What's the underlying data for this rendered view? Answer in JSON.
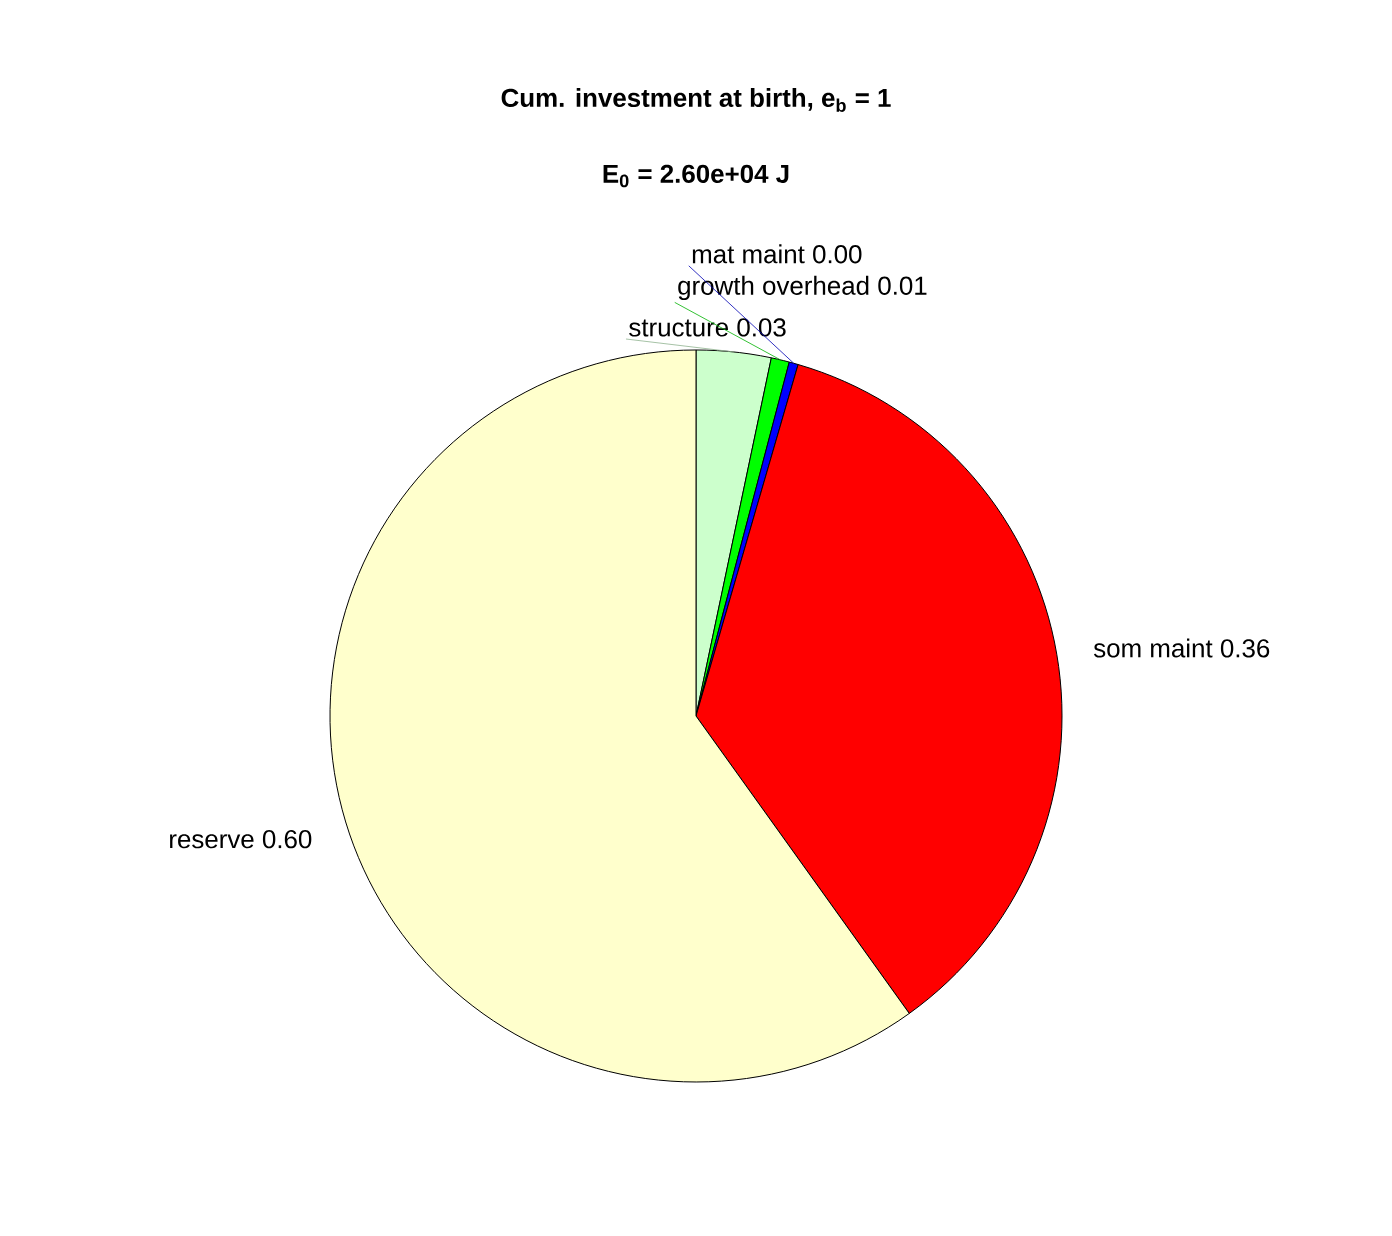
{
  "chart_data": {
    "type": "pie",
    "title": "Cum. investment at birth, e$_{b}$ = 1",
    "subtitle": "E$_{0}$ = 2.60e+04 J",
    "categories": [
      "structure",
      "growth overhead",
      "mat maint",
      "som maint",
      "reserve"
    ],
    "values": [
      0.033,
      0.008,
      0.004,
      0.356,
      0.599
    ],
    "value_labels": [
      "0.03",
      "0.01",
      "0.00",
      "0.36",
      "0.60"
    ],
    "colors": [
      "#ccffcc",
      "#00ff00",
      "#0000ff",
      "#ff0000",
      "#ffffcc"
    ]
  }
}
